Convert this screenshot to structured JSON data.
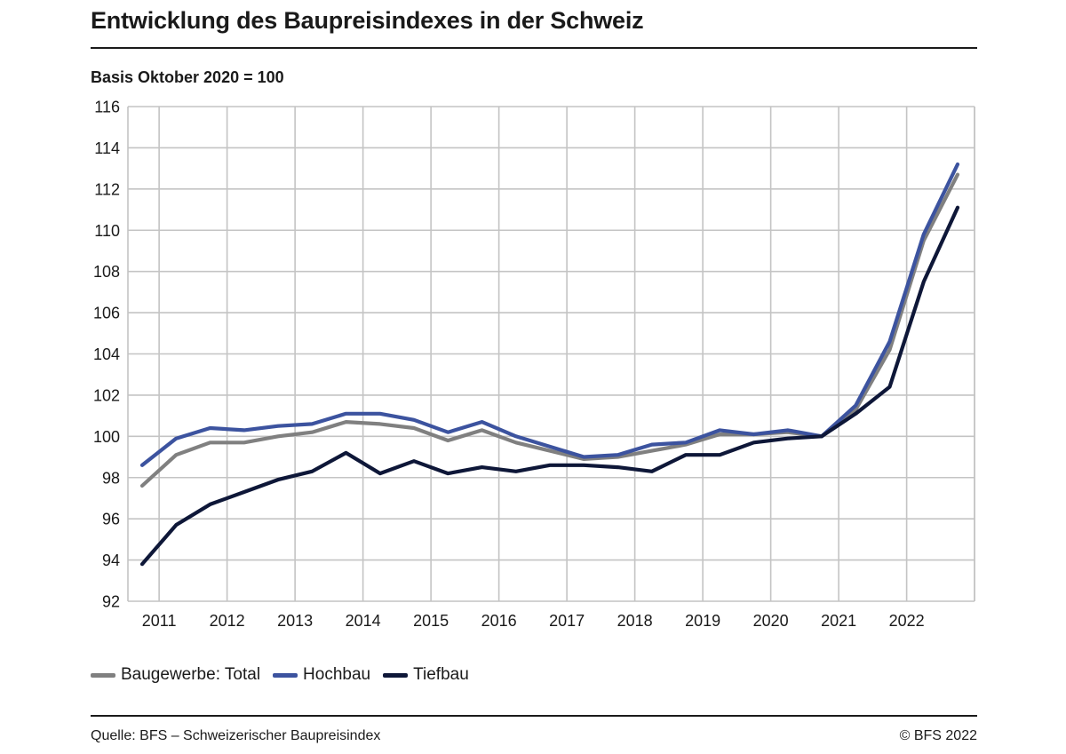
{
  "header": {
    "title": "Entwicklung des Baupreisindexes in der Schweiz",
    "subtitle": "Basis Oktober 2020 = 100"
  },
  "footer": {
    "source": "Quelle: BFS – Schweizerischer Baupreisindex",
    "copyright": "© BFS 2022"
  },
  "chart_data": {
    "type": "line",
    "title": "Entwicklung des Baupreisindexes in der Schweiz",
    "subtitle": "Basis Oktober 2020 = 100",
    "xlabel": "",
    "ylabel": "",
    "ylim": [
      92,
      116
    ],
    "yticks": [
      92,
      94,
      96,
      98,
      100,
      102,
      104,
      106,
      108,
      110,
      112,
      114,
      116
    ],
    "xticks": [
      "2011",
      "2012",
      "2013",
      "2014",
      "2015",
      "2016",
      "2017",
      "2018",
      "2019",
      "2020",
      "2021",
      "2022"
    ],
    "x": [
      "2010-10",
      "2011-04",
      "2011-10",
      "2012-04",
      "2012-10",
      "2013-04",
      "2013-10",
      "2014-04",
      "2014-10",
      "2015-04",
      "2015-10",
      "2016-04",
      "2016-10",
      "2017-04",
      "2017-10",
      "2018-04",
      "2018-10",
      "2019-04",
      "2019-10",
      "2020-04",
      "2020-10",
      "2021-04",
      "2021-10",
      "2022-04",
      "2022-10"
    ],
    "grid": true,
    "legend_position": "bottom-left",
    "series": [
      {
        "name": "Baugewerbe: Total",
        "color": "#808080",
        "values": [
          97.6,
          99.1,
          99.7,
          99.7,
          100.0,
          100.2,
          100.7,
          100.6,
          100.4,
          99.8,
          100.3,
          99.7,
          99.3,
          98.9,
          99.0,
          99.3,
          99.6,
          100.1,
          100.1,
          100.2,
          100.0,
          101.3,
          104.2,
          109.5,
          112.7
        ]
      },
      {
        "name": "Hochbau",
        "color": "#3c539f",
        "values": [
          98.6,
          99.9,
          100.4,
          100.3,
          100.5,
          100.6,
          101.1,
          101.1,
          100.8,
          100.2,
          100.7,
          100.0,
          99.5,
          99.0,
          99.1,
          99.6,
          99.7,
          100.3,
          100.1,
          100.3,
          100.0,
          101.5,
          104.6,
          109.8,
          113.2
        ]
      },
      {
        "name": "Tiefbau",
        "color": "#0e1738",
        "values": [
          93.8,
          95.7,
          96.7,
          97.3,
          97.9,
          98.3,
          99.2,
          98.2,
          98.8,
          98.2,
          98.5,
          98.3,
          98.6,
          98.6,
          98.5,
          98.3,
          99.1,
          99.1,
          99.7,
          99.9,
          100.0,
          101.1,
          102.4,
          107.5,
          111.1
        ]
      }
    ]
  }
}
